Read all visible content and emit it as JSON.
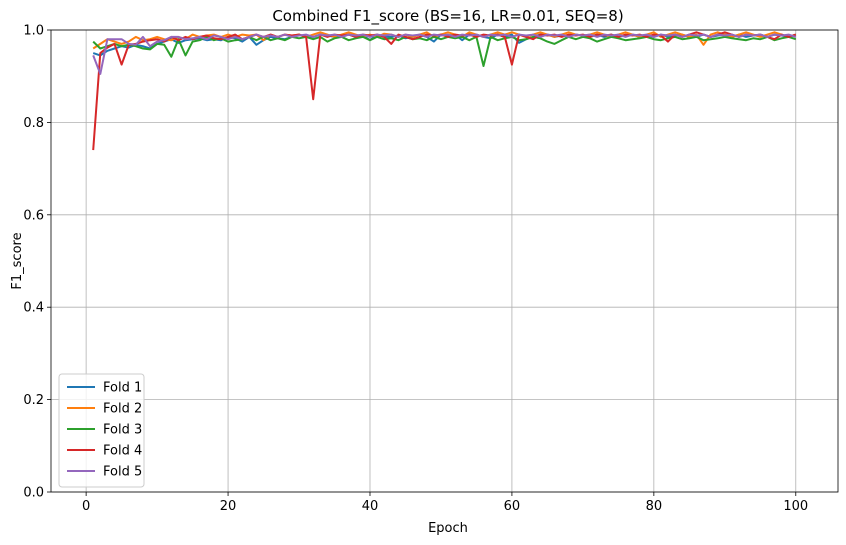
{
  "chart_data": {
    "type": "line",
    "title": "Combined F1_score (BS=16, LR=0.01, SEQ=8)",
    "xlabel": "Epoch",
    "ylabel": "F1_score",
    "xlim": [
      -4.95,
      105.95
    ],
    "ylim": [
      0.0,
      1.0
    ],
    "xticks": [
      0,
      20,
      40,
      60,
      80,
      100
    ],
    "yticks": [
      0.0,
      0.2,
      0.4,
      0.6,
      0.8,
      1.0
    ],
    "xtick_labels": [
      "0",
      "20",
      "40",
      "60",
      "80",
      "100"
    ],
    "ytick_labels": [
      "0.0",
      "0.2",
      "0.4",
      "0.6",
      "0.8",
      "1.0"
    ],
    "grid": true,
    "legend_position": "lower-left",
    "x": [
      1,
      2,
      3,
      4,
      5,
      6,
      7,
      8,
      9,
      10,
      11,
      12,
      13,
      14,
      15,
      16,
      17,
      18,
      19,
      20,
      21,
      22,
      23,
      24,
      25,
      26,
      27,
      28,
      29,
      30,
      31,
      32,
      33,
      34,
      35,
      36,
      37,
      38,
      39,
      40,
      41,
      42,
      43,
      44,
      45,
      46,
      47,
      48,
      49,
      50,
      51,
      52,
      53,
      54,
      55,
      56,
      57,
      58,
      59,
      60,
      61,
      62,
      63,
      64,
      65,
      66,
      67,
      68,
      69,
      70,
      71,
      72,
      73,
      74,
      75,
      76,
      77,
      78,
      79,
      80,
      81,
      82,
      83,
      84,
      85,
      86,
      87,
      88,
      89,
      90,
      91,
      92,
      93,
      94,
      95,
      96,
      97,
      98,
      99,
      100
    ],
    "series": [
      {
        "name": "Fold 1",
        "color": "#1f77b4",
        "values": [
          0.95,
          0.945,
          0.955,
          0.96,
          0.965,
          0.962,
          0.968,
          0.965,
          0.96,
          0.97,
          0.975,
          0.98,
          0.972,
          0.978,
          0.98,
          0.982,
          0.978,
          0.98,
          0.978,
          0.985,
          0.982,
          0.975,
          0.985,
          0.968,
          0.978,
          0.985,
          0.982,
          0.98,
          0.985,
          0.99,
          0.985,
          0.985,
          0.99,
          0.988,
          0.985,
          0.985,
          0.99,
          0.985,
          0.988,
          0.978,
          0.99,
          0.985,
          0.985,
          0.988,
          0.982,
          0.985,
          0.99,
          0.985,
          0.975,
          0.99,
          0.988,
          0.99,
          0.978,
          0.99,
          0.99,
          0.985,
          0.982,
          0.99,
          0.985,
          0.99,
          0.972,
          0.98,
          0.985,
          0.99,
          0.99,
          0.985,
          0.988,
          0.985,
          0.99,
          0.988,
          0.985,
          0.99,
          0.985,
          0.99,
          0.985,
          0.988,
          0.99,
          0.985,
          0.988,
          0.985,
          0.99,
          0.985,
          0.988,
          0.99,
          0.985,
          0.985,
          0.99,
          0.985,
          0.988,
          0.99,
          0.985,
          0.99,
          0.985,
          0.988,
          0.99,
          0.985,
          0.99,
          0.988,
          0.985,
          0.99
        ]
      },
      {
        "name": "Fold 2",
        "color": "#ff7f0e",
        "values": [
          0.96,
          0.97,
          0.98,
          0.975,
          0.97,
          0.975,
          0.985,
          0.978,
          0.98,
          0.985,
          0.98,
          0.978,
          0.985,
          0.98,
          0.99,
          0.985,
          0.988,
          0.99,
          0.985,
          0.99,
          0.985,
          0.99,
          0.988,
          0.99,
          0.978,
          0.99,
          0.985,
          0.99,
          0.988,
          0.99,
          0.985,
          0.99,
          0.995,
          0.99,
          0.985,
          0.99,
          0.995,
          0.99,
          0.985,
          0.99,
          0.985,
          0.992,
          0.99,
          0.985,
          0.99,
          0.985,
          0.99,
          0.995,
          0.985,
          0.99,
          0.995,
          0.99,
          0.985,
          0.995,
          0.99,
          0.985,
          0.99,
          0.995,
          0.99,
          0.995,
          0.99,
          0.985,
          0.99,
          0.995,
          0.99,
          0.985,
          0.99,
          0.995,
          0.99,
          0.988,
          0.99,
          0.995,
          0.99,
          0.985,
          0.99,
          0.995,
          0.99,
          0.985,
          0.99,
          0.995,
          0.985,
          0.99,
          0.995,
          0.99,
          0.985,
          0.99,
          0.968,
          0.99,
          0.995,
          0.99,
          0.985,
          0.99,
          0.995,
          0.99,
          0.985,
          0.99,
          0.995,
          0.99,
          0.985,
          0.99
        ]
      },
      {
        "name": "Fold 3",
        "color": "#2ca02c",
        "values": [
          0.975,
          0.96,
          0.965,
          0.97,
          0.965,
          0.968,
          0.965,
          0.96,
          0.958,
          0.97,
          0.968,
          0.942,
          0.98,
          0.945,
          0.975,
          0.978,
          0.985,
          0.978,
          0.982,
          0.975,
          0.978,
          0.98,
          0.985,
          0.978,
          0.985,
          0.978,
          0.982,
          0.978,
          0.985,
          0.982,
          0.985,
          0.98,
          0.985,
          0.975,
          0.982,
          0.985,
          0.978,
          0.982,
          0.985,
          0.978,
          0.985,
          0.98,
          0.982,
          0.978,
          0.985,
          0.98,
          0.982,
          0.978,
          0.985,
          0.98,
          0.985,
          0.982,
          0.985,
          0.978,
          0.985,
          0.922,
          0.985,
          0.978,
          0.982,
          0.985,
          0.978,
          0.98,
          0.985,
          0.982,
          0.975,
          0.97,
          0.978,
          0.985,
          0.98,
          0.985,
          0.982,
          0.975,
          0.98,
          0.985,
          0.982,
          0.978,
          0.98,
          0.982,
          0.985,
          0.98,
          0.978,
          0.982,
          0.985,
          0.98,
          0.982,
          0.985,
          0.978,
          0.98,
          0.982,
          0.985,
          0.982,
          0.98,
          0.978,
          0.982,
          0.98,
          0.985,
          0.978,
          0.982,
          0.985,
          0.98
        ]
      },
      {
        "name": "Fold 4",
        "color": "#d62728",
        "values": [
          0.74,
          0.95,
          0.962,
          0.97,
          0.925,
          0.968,
          0.97,
          0.975,
          0.978,
          0.98,
          0.975,
          0.985,
          0.978,
          0.985,
          0.98,
          0.985,
          0.988,
          0.982,
          0.98,
          0.985,
          0.99,
          0.98,
          0.985,
          0.99,
          0.985,
          0.99,
          0.985,
          0.99,
          0.988,
          0.99,
          0.985,
          0.85,
          0.99,
          0.985,
          0.99,
          0.988,
          0.99,
          0.985,
          0.99,
          0.988,
          0.99,
          0.985,
          0.97,
          0.99,
          0.985,
          0.98,
          0.985,
          0.99,
          0.988,
          0.99,
          0.985,
          0.99,
          0.988,
          0.99,
          0.985,
          0.99,
          0.988,
          0.99,
          0.985,
          0.925,
          0.99,
          0.985,
          0.98,
          0.99,
          0.988,
          0.99,
          0.985,
          0.99,
          0.988,
          0.99,
          0.985,
          0.99,
          0.988,
          0.99,
          0.985,
          0.99,
          0.988,
          0.99,
          0.985,
          0.99,
          0.988,
          0.975,
          0.99,
          0.985,
          0.99,
          0.995,
          0.99,
          0.985,
          0.99,
          0.995,
          0.99,
          0.985,
          0.99,
          0.988,
          0.99,
          0.985,
          0.98,
          0.99,
          0.985,
          0.99
        ]
      },
      {
        "name": "Fold 5",
        "color": "#9467bd",
        "values": [
          0.945,
          0.905,
          0.98,
          0.98,
          0.98,
          0.97,
          0.968,
          0.985,
          0.965,
          0.975,
          0.978,
          0.985,
          0.985,
          0.98,
          0.982,
          0.985,
          0.98,
          0.988,
          0.985,
          0.98,
          0.985,
          0.98,
          0.985,
          0.99,
          0.985,
          0.988,
          0.985,
          0.99,
          0.985,
          0.988,
          0.99,
          0.985,
          0.99,
          0.988,
          0.99,
          0.985,
          0.99,
          0.988,
          0.99,
          0.985,
          0.99,
          0.988,
          0.99,
          0.985,
          0.99,
          0.988,
          0.99,
          0.985,
          0.99,
          0.988,
          0.99,
          0.985,
          0.99,
          0.988,
          0.99,
          0.985,
          0.99,
          0.988,
          0.99,
          0.985,
          0.99,
          0.988,
          0.99,
          0.985,
          0.99,
          0.988,
          0.99,
          0.985,
          0.99,
          0.988,
          0.99,
          0.985,
          0.99,
          0.988,
          0.99,
          0.985,
          0.99,
          0.988,
          0.99,
          0.985,
          0.99,
          0.988,
          0.99,
          0.985,
          0.99,
          0.988,
          0.99,
          0.985,
          0.99,
          0.988,
          0.99,
          0.985,
          0.99,
          0.988,
          0.99,
          0.985,
          0.99,
          0.988,
          0.99,
          0.985
        ]
      }
    ]
  }
}
